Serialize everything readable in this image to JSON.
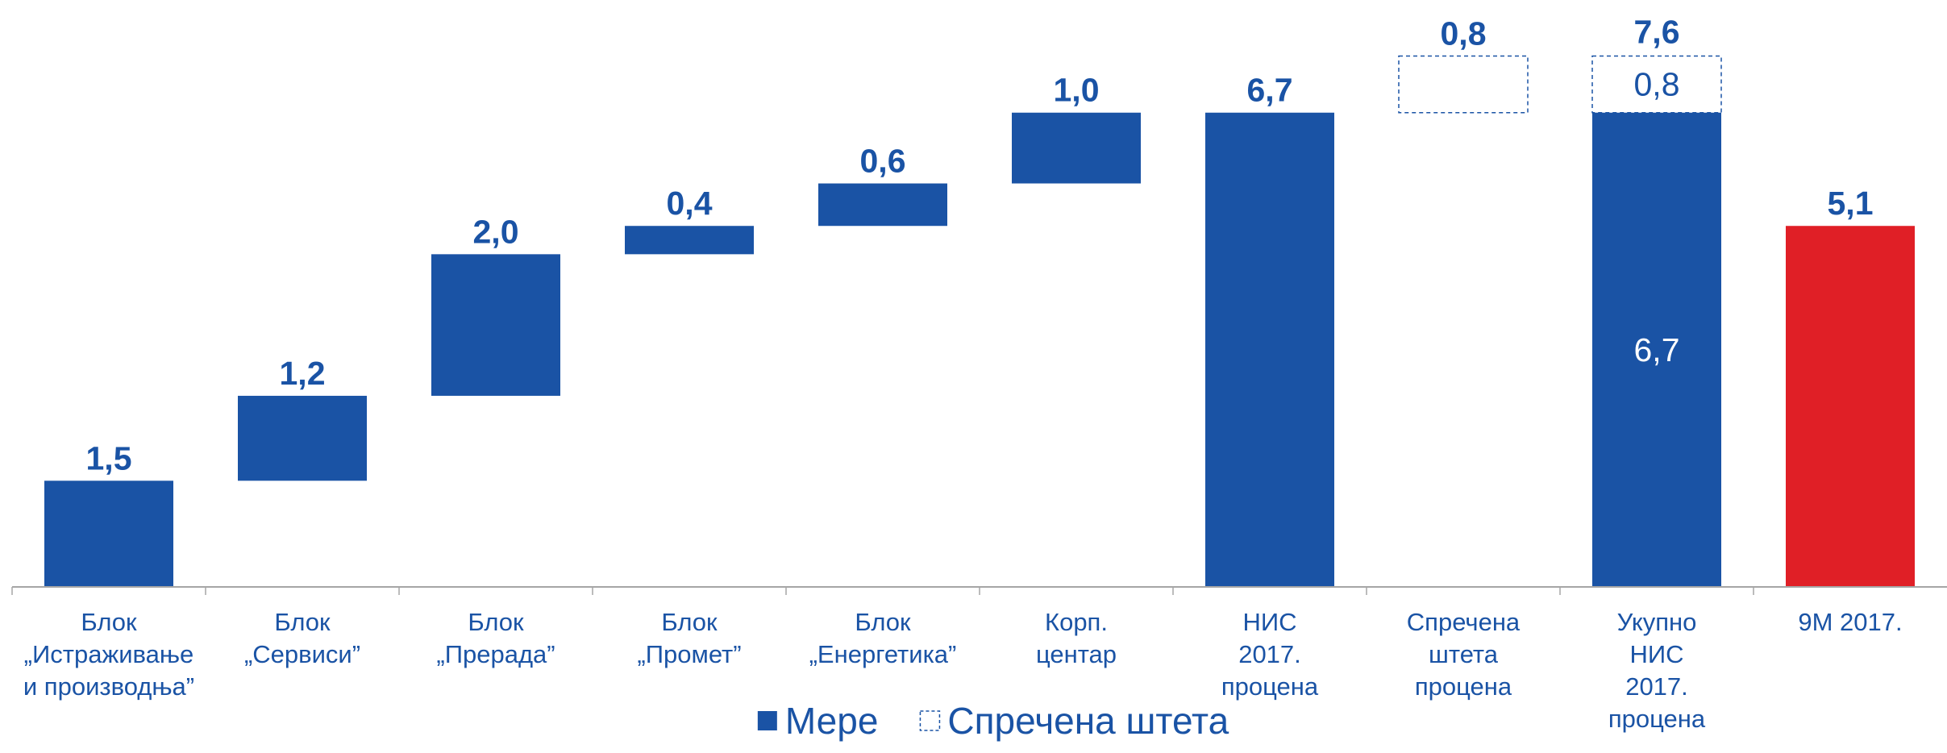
{
  "chart_data": {
    "type": "waterfall",
    "categories": [
      "Блок\n„Истраживање\nи производња”",
      "Блок\n„Сервиси”",
      "Блок\n„Прерада”",
      "Блок\n„Промет”",
      "Блок\n„Енергетика”",
      "Корп.\nцентар",
      "НИС\n2017.\nпроцена",
      "Спречена\nштета\nпроцена",
      "Укупно\nНИС\n2017.\nпроцена",
      "9M 2017."
    ],
    "measure": [
      "relative",
      "relative",
      "relative",
      "relative",
      "relative",
      "relative",
      "total",
      "relative",
      "total",
      "absolute"
    ],
    "series": [
      {
        "name": "Мере",
        "color": "#1a53a5",
        "style": "solid",
        "values": [
          1.5,
          1.2,
          2.0,
          0.4,
          0.6,
          1.0,
          6.7,
          null,
          6.7,
          null
        ],
        "value_labels": [
          "1,5",
          "1,2",
          "2,0",
          "0,4",
          "0,6",
          "1,0",
          "6,7",
          null,
          "6,7",
          null
        ]
      },
      {
        "name": "Спречена штета",
        "color": "#1a53a5",
        "style": "dashed",
        "values": [
          null,
          null,
          null,
          null,
          null,
          null,
          null,
          0.8,
          0.8,
          null
        ],
        "value_labels": [
          null,
          null,
          null,
          null,
          null,
          null,
          null,
          "0,8",
          "0,8",
          null
        ]
      },
      {
        "color": "#e01f26",
        "style": "solid",
        "values": [
          null,
          null,
          null,
          null,
          null,
          null,
          null,
          null,
          null,
          5.1
        ],
        "value_labels": [
          null,
          null,
          null,
          null,
          null,
          null,
          null,
          null,
          null,
          "5,1"
        ]
      }
    ],
    "totals": {
      "values": [
        null,
        null,
        null,
        null,
        null,
        null,
        null,
        null,
        7.6,
        null
      ],
      "value_labels": [
        null,
        null,
        null,
        null,
        null,
        null,
        null,
        null,
        "7,6",
        null
      ]
    },
    "legend": "bottom"
  }
}
